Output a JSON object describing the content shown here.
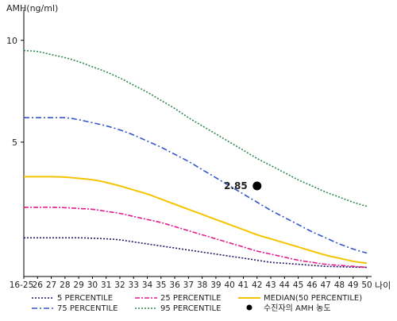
{
  "chart_data": {
    "type": "line",
    "ylabel": "AMH(ng/ml)",
    "xlabel": "나이",
    "ylim": [
      -1.6,
      11.2
    ],
    "yticks": [
      "5",
      "10"
    ],
    "yticks_values": [
      5,
      10
    ],
    "categories": [
      "16-25",
      "26",
      "27",
      "28",
      "29",
      "30",
      "31",
      "32",
      "33",
      "34",
      "35",
      "36",
      "37",
      "38",
      "39",
      "40",
      "41",
      "42",
      "43",
      "44",
      "45",
      "46",
      "47",
      "48",
      "49",
      "50"
    ],
    "series": [
      {
        "name": "5 PERCENTILE",
        "color": "#1a1a66",
        "dash": "2,2",
        "values": [
          0.3,
          0.3,
          0.3,
          0.3,
          0.3,
          0.28,
          0.25,
          0.2,
          0.1,
          0.0,
          -0.1,
          -0.2,
          -0.3,
          -0.4,
          -0.5,
          -0.6,
          -0.7,
          -0.8,
          -0.9,
          -0.95,
          -1.0,
          -1.05,
          -1.1,
          -1.12,
          -1.14,
          -1.15
        ]
      },
      {
        "name": "25 PERCENTILE",
        "color": "#e01e8c",
        "dash": "6,2,2,2",
        "values": [
          1.8,
          1.8,
          1.8,
          1.78,
          1.74,
          1.7,
          1.6,
          1.5,
          1.35,
          1.2,
          1.05,
          0.85,
          0.65,
          0.45,
          0.25,
          0.05,
          -0.15,
          -0.35,
          -0.5,
          -0.65,
          -0.8,
          -0.9,
          -1.0,
          -1.05,
          -1.1,
          -1.15
        ]
      },
      {
        "name": "MEDIAN(50 PERCENTILE)",
        "color": "#f5c400",
        "dash": "",
        "values": [
          3.3,
          3.3,
          3.3,
          3.28,
          3.22,
          3.15,
          3.02,
          2.85,
          2.65,
          2.45,
          2.2,
          1.95,
          1.7,
          1.45,
          1.2,
          0.95,
          0.7,
          0.45,
          0.25,
          0.05,
          -0.15,
          -0.35,
          -0.55,
          -0.7,
          -0.85,
          -0.95
        ]
      },
      {
        "name": "75 PERCENTILE",
        "color": "#3355cc",
        "dash": "7,3,2,3",
        "values": [
          6.2,
          6.2,
          6.2,
          6.2,
          6.1,
          5.95,
          5.8,
          5.6,
          5.35,
          5.05,
          4.75,
          4.4,
          4.05,
          3.65,
          3.25,
          2.85,
          2.45,
          2.05,
          1.65,
          1.3,
          0.95,
          0.6,
          0.3,
          0.0,
          -0.25,
          -0.45
        ]
      },
      {
        "name": "95 PERCENTILE",
        "color": "#2d8a4e",
        "dash": "2,2",
        "values": [
          9.5,
          9.45,
          9.3,
          9.15,
          8.95,
          8.7,
          8.45,
          8.15,
          7.8,
          7.45,
          7.05,
          6.65,
          6.2,
          5.8,
          5.4,
          5.0,
          4.6,
          4.2,
          3.85,
          3.5,
          3.15,
          2.85,
          2.55,
          2.3,
          2.05,
          1.85
        ]
      }
    ],
    "patient_point": {
      "label": "수진자의 AMH 농도",
      "x": "42",
      "y": 2.85,
      "text": "2.85",
      "color": "#000000"
    },
    "legend_placement": "bottom",
    "grid": false
  }
}
